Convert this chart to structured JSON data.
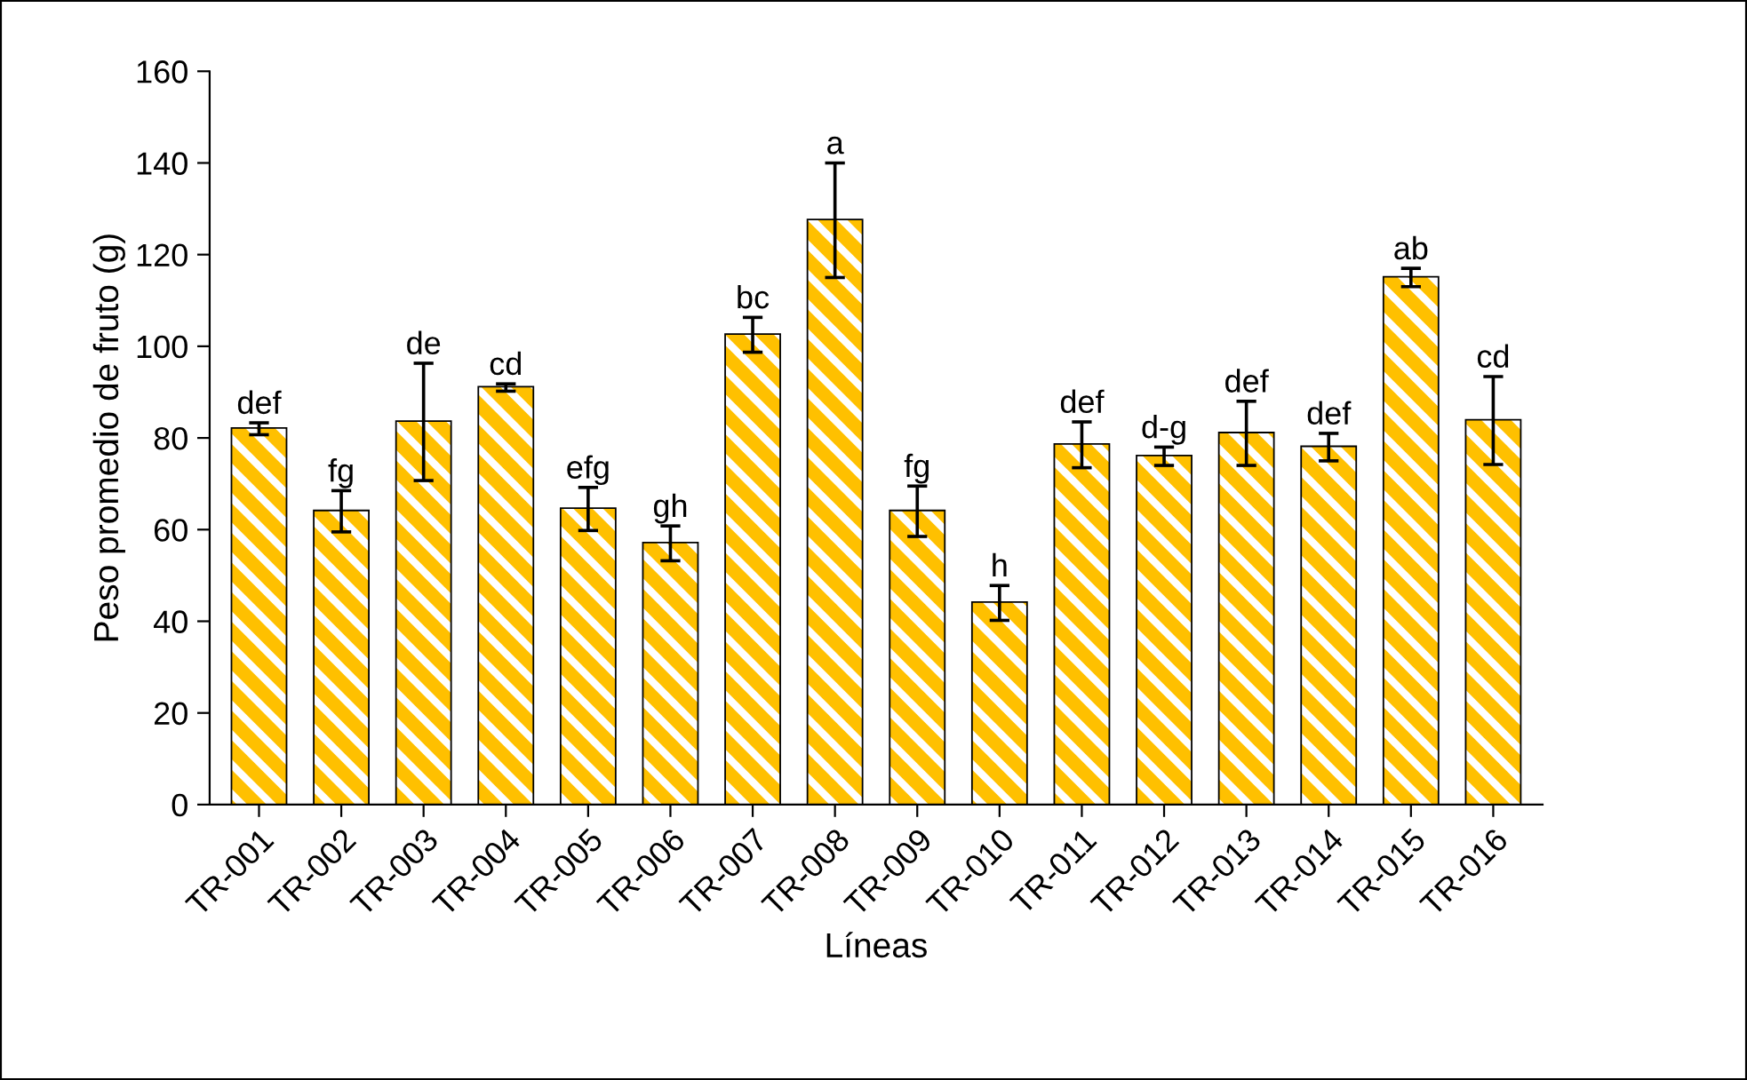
{
  "chart_data": {
    "type": "bar",
    "xlabel": "Líneas",
    "ylabel": "Peso promedio de fruto (g)",
    "categories": [
      "TR-001",
      "TR-002",
      "TR-003",
      "TR-004",
      "TR-005",
      "TR-006",
      "TR-007",
      "TR-008",
      "TR-009",
      "TR-010",
      "TR-011",
      "TR-012",
      "TR-013",
      "TR-014",
      "TR-015",
      "TR-016"
    ],
    "values": [
      82,
      64,
      83.5,
      91,
      64.5,
      57,
      102.5,
      127.5,
      64,
      44,
      78.5,
      76,
      81,
      78,
      115,
      83.8
    ],
    "errors": [
      1.3,
      4.5,
      12.8,
      0.8,
      4.7,
      3.8,
      3.8,
      12.5,
      5.5,
      3.8,
      5,
      2,
      7,
      3,
      2,
      9.6
    ],
    "color": "#ffc000",
    "ylim": [
      0,
      160
    ],
    "yticks": [
      0,
      20,
      40,
      60,
      80,
      100,
      120,
      140,
      160
    ],
    "grid": false,
    "legend": false,
    "annotations": [
      {
        "text": "def",
        "x": "TR-001",
        "y": 83.3
      },
      {
        "text": "fg",
        "x": "TR-002",
        "y": 68.5
      },
      {
        "text": "de",
        "x": "TR-003",
        "y": 96.3
      },
      {
        "text": "cd",
        "x": "TR-004",
        "y": 91.8
      },
      {
        "text": "efg",
        "x": "TR-005",
        "y": 69.2
      },
      {
        "text": "gh",
        "x": "TR-006",
        "y": 60.8
      },
      {
        "text": "bc",
        "x": "TR-007",
        "y": 106.3
      },
      {
        "text": "a",
        "x": "TR-008",
        "y": 140
      },
      {
        "text": "fg",
        "x": "TR-009",
        "y": 69.5
      },
      {
        "text": "h",
        "x": "TR-010",
        "y": 47.8
      },
      {
        "text": "def",
        "x": "TR-011",
        "y": 83.5
      },
      {
        "text": "d-g",
        "x": "TR-012",
        "y": 78
      },
      {
        "text": "def",
        "x": "TR-013",
        "y": 88
      },
      {
        "text": "def",
        "x": "TR-014",
        "y": 81
      },
      {
        "text": "ab",
        "x": "TR-015",
        "y": 117
      },
      {
        "text": "cd",
        "x": "TR-016",
        "y": 93.4
      }
    ]
  }
}
